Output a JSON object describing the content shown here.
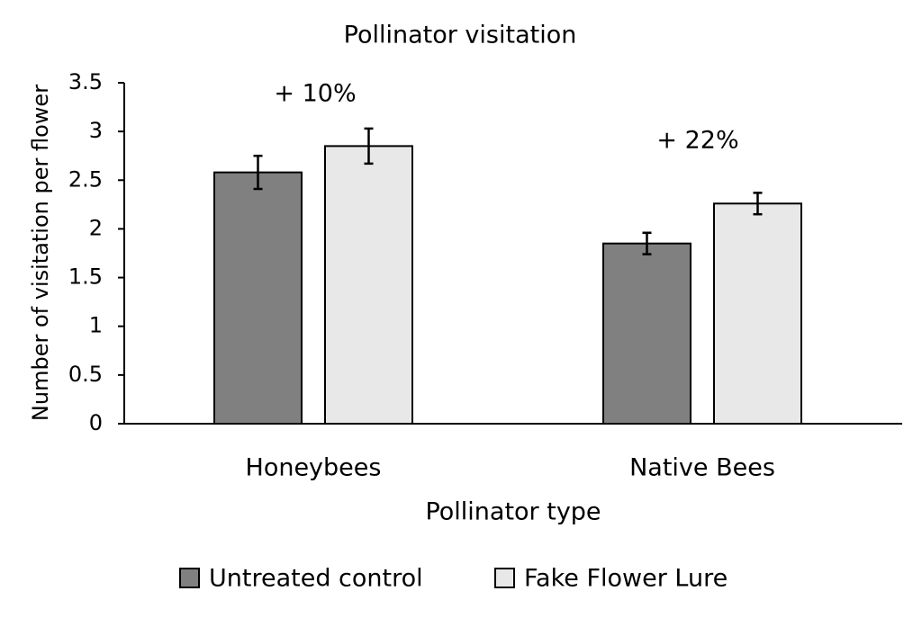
{
  "chart_data": {
    "type": "bar",
    "title": "Pollinator visitation",
    "x_label": "Pollinator type",
    "y_label": "Number of  visitation per flower",
    "categories": [
      "Honeybees",
      "Native Bees"
    ],
    "series": [
      {
        "name": "Untreated control",
        "color": "#808080",
        "values": [
          2.58,
          1.85
        ],
        "errors": [
          0.17,
          0.11
        ]
      },
      {
        "name": "Fake Flower Lure",
        "color": "#e8e8e8",
        "values": [
          2.85,
          2.26
        ],
        "errors": [
          0.18,
          0.11
        ]
      }
    ],
    "annotations": [
      "+ 10%",
      "+ 22%"
    ],
    "ylim": [
      0,
      3.5
    ],
    "yticks": [
      0,
      0.5,
      1,
      1.5,
      2,
      2.5,
      3,
      3.5
    ],
    "grid": false,
    "legend": "bottom"
  }
}
